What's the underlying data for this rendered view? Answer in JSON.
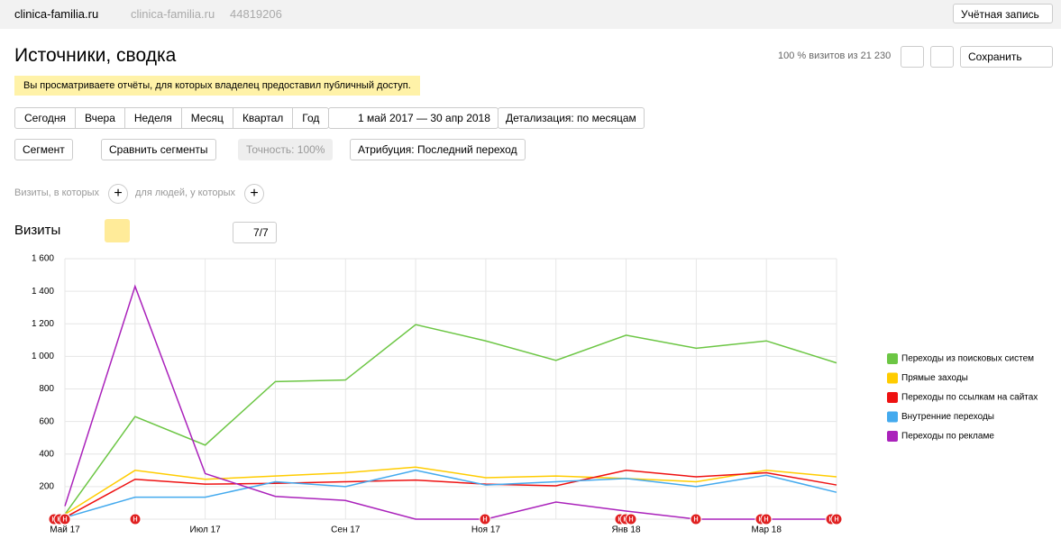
{
  "header": {
    "site": "clinica-familia.ru",
    "site_alt": "clinica-familia.ru",
    "counter": "44819206",
    "account": "Учётная запись"
  },
  "report": {
    "title": "Источники, сводка",
    "share": "100 % визитов из 21 230",
    "save": "Сохранить",
    "notice": "Вы просматриваете отчёты, для которых владелец предоставил публичный доступ."
  },
  "periods": [
    "Сегодня",
    "Вчера",
    "Неделя",
    "Месяц",
    "Квартал",
    "Год"
  ],
  "date_range": "1 май 2017 — 30 апр 2018",
  "detail": "Детализация: по месяцам",
  "filters": {
    "segment": "Сегмент",
    "compare": "Сравнить сегменты",
    "accuracy": "Точность: 100%",
    "attribution": "Атрибуция: Последний переход"
  },
  "conditions": {
    "visits": "Визиты, в которых",
    "people": "для людей, у которых"
  },
  "chart_header": {
    "metric": "Визиты",
    "series_count": "7/7"
  },
  "annotation_marker": "н",
  "chart_data": {
    "type": "line",
    "categories": [
      "Май 17",
      null,
      "Июл 17",
      null,
      "Сен 17",
      null,
      "Ноя 17",
      null,
      "Янв 18",
      null,
      "Мар 18",
      null
    ],
    "series": [
      {
        "name": "Переходы из поисковых систем",
        "color": "#6cc644",
        "values": [
          30,
          630,
          455,
          845,
          855,
          1195,
          1095,
          975,
          1130,
          1050,
          1095,
          960
        ]
      },
      {
        "name": "Прямые заходы",
        "color": "#ffcc00",
        "values": [
          30,
          300,
          245,
          265,
          285,
          320,
          255,
          265,
          250,
          230,
          300,
          260
        ]
      },
      {
        "name": "Переходы по ссылкам на сайтах",
        "color": "#ee1111",
        "values": [
          10,
          245,
          215,
          220,
          230,
          240,
          215,
          205,
          300,
          260,
          285,
          210
        ]
      },
      {
        "name": "Внутренние переходы",
        "color": "#44aaee",
        "values": [
          10,
          135,
          135,
          230,
          200,
          300,
          210,
          230,
          250,
          200,
          270,
          165
        ]
      },
      {
        "name": "Переходы по рекламе",
        "color": "#aa22bb",
        "values": [
          80,
          1430,
          280,
          140,
          115,
          0,
          0,
          105,
          50,
          0,
          0,
          0
        ]
      }
    ],
    "ylim": [
      0,
      1600
    ],
    "yticks": [
      0,
      200,
      400,
      600,
      800,
      {
        "value": 1000,
        "label": "1 000"
      },
      {
        "value": 1200,
        "label": "1 200"
      },
      {
        "value": 1400,
        "label": "1 400"
      },
      {
        "value": 1600,
        "label": "1 600"
      }
    ],
    "grid": true
  }
}
